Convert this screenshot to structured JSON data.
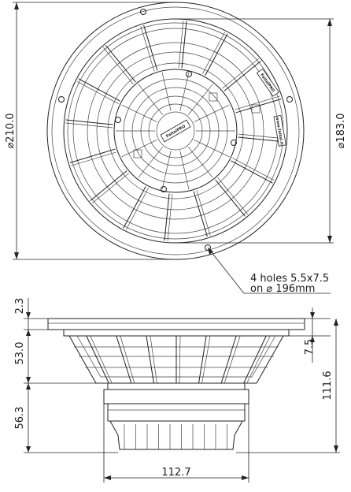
{
  "dimensions": {
    "outer_diameter": "210.0",
    "inner_diameter": "183.0",
    "holes_line1": "4 holes 5.5x7.5",
    "holes_line2": "on",
    "holes_diameter": "196mm",
    "frame_thickness": "2.3",
    "basket_depth": "53.0",
    "magnet_depth": "56.3",
    "flange_height": "7.5",
    "overall_depth": "111.6",
    "magnet_diameter": "112.7"
  },
  "branding": {
    "center_logo": "FaitalPRO",
    "rim_logo": "FaitalPRO",
    "rim_url": "www.faital.it"
  }
}
